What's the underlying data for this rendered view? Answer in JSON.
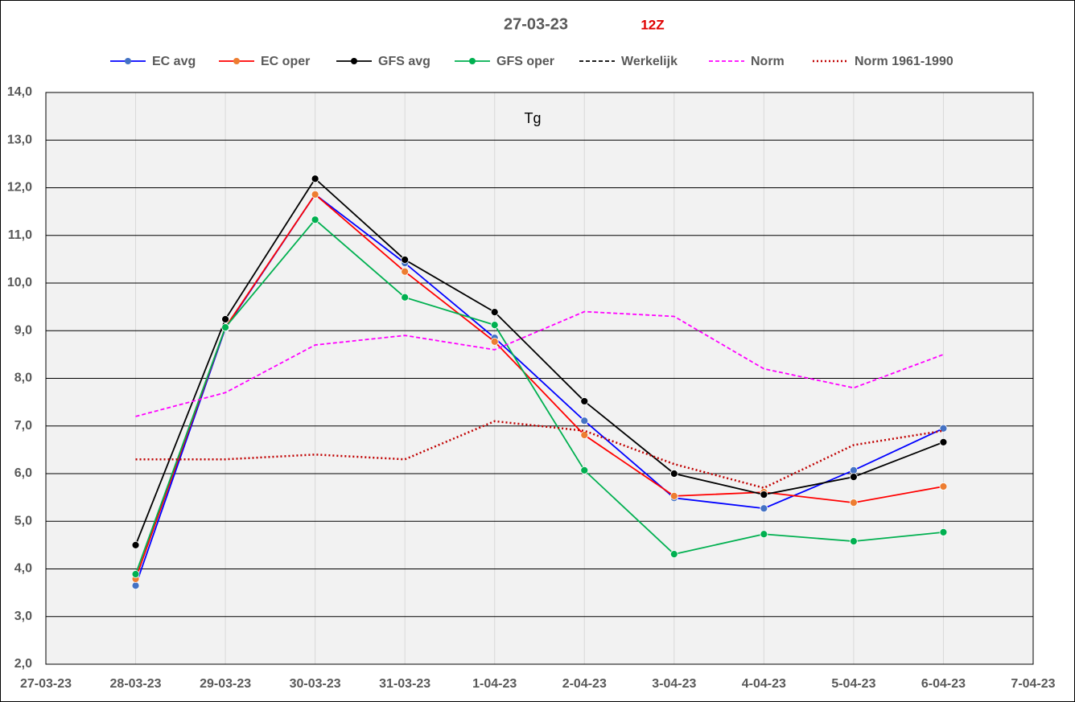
{
  "chart_data": {
    "type": "line",
    "title": "27-03-23",
    "subtitle": "12Z",
    "subtitle_color": "#e00000",
    "annotation": "Tg",
    "categories": [
      "27-03-23",
      "28-03-23",
      "29-03-23",
      "30-03-23",
      "31-03-23",
      "1-04-23",
      "2-04-23",
      "3-04-23",
      "4-04-23",
      "5-04-23",
      "6-04-23",
      "7-04-23"
    ],
    "ylim": [
      2,
      14
    ],
    "yticks": [
      {
        "value": 2,
        "label": "2,0"
      },
      {
        "value": 3,
        "label": "3,0"
      },
      {
        "value": 4,
        "label": "4,0"
      },
      {
        "value": 5,
        "label": "5,0"
      },
      {
        "value": 6,
        "label": "6,0"
      },
      {
        "value": 7,
        "label": "7,0"
      },
      {
        "value": 8,
        "label": "8,0"
      },
      {
        "value": 9,
        "label": "9,0"
      },
      {
        "value": 10,
        "label": "10,0"
      },
      {
        "value": 11,
        "label": "11,0"
      },
      {
        "value": 12,
        "label": "12,0"
      },
      {
        "value": 13,
        "label": "13,0"
      },
      {
        "value": 14,
        "label": "14,0"
      }
    ],
    "grid": true,
    "series": [
      {
        "name": "EC avg",
        "color": "#0000ff",
        "marker_color": "#4472c4",
        "dash": "solid",
        "marker": true,
        "values": [
          null,
          3.65,
          9.05,
          11.86,
          10.42,
          8.85,
          7.11,
          5.49,
          5.27,
          6.07,
          6.95,
          null
        ]
      },
      {
        "name": "EC oper",
        "color": "#ff0000",
        "marker_color": "#ed7d31",
        "dash": "solid",
        "marker": true,
        "values": [
          null,
          3.79,
          9.07,
          11.86,
          10.24,
          8.77,
          6.81,
          5.53,
          5.61,
          5.39,
          5.73,
          null
        ]
      },
      {
        "name": "GFS avg",
        "color": "#000000",
        "marker_color": "#000000",
        "dash": "solid",
        "marker": true,
        "values": [
          null,
          4.5,
          9.24,
          12.19,
          10.49,
          9.39,
          7.52,
          6.0,
          5.56,
          5.93,
          6.66,
          null
        ]
      },
      {
        "name": "GFS oper",
        "color": "#00b050",
        "marker_color": "#00b050",
        "dash": "solid",
        "marker": true,
        "values": [
          null,
          3.89,
          9.07,
          11.33,
          9.7,
          9.12,
          6.07,
          4.31,
          4.73,
          4.58,
          4.77,
          null
        ]
      },
      {
        "name": "Werkelijk",
        "color": "#000000",
        "dash": "dashed",
        "marker": false,
        "values": [
          null,
          null,
          null,
          null,
          null,
          null,
          null,
          null,
          null,
          null,
          null,
          null
        ]
      },
      {
        "name": "Norm",
        "color": "#ff00ff",
        "dash": "dashed",
        "marker": false,
        "values": [
          null,
          7.2,
          7.7,
          8.7,
          8.9,
          8.6,
          9.4,
          9.3,
          8.2,
          7.8,
          8.5,
          null
        ]
      },
      {
        "name": "Norm 1961-1990",
        "color": "#c00000",
        "dash": "dotted",
        "marker": false,
        "values": [
          null,
          6.3,
          6.3,
          6.4,
          6.3,
          7.1,
          6.9,
          6.2,
          5.7,
          6.6,
          6.9,
          null
        ]
      }
    ]
  }
}
